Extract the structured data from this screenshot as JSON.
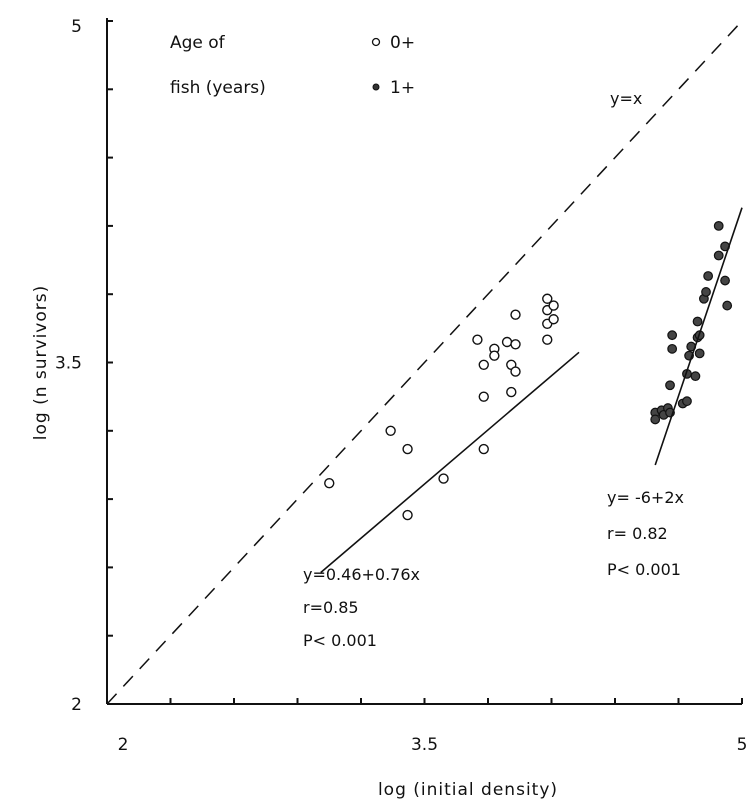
{
  "chart_data": {
    "type": "scatter",
    "xlabel": "log (initial density)",
    "ylabel": "log (n survivors)",
    "xlim": [
      2,
      5
    ],
    "ylim": [
      2,
      5
    ],
    "x_ticks": [
      "2",
      "3.5",
      "5"
    ],
    "y_ticks": [
      "2",
      "3.5",
      "5"
    ],
    "legend": {
      "title_line1": "Age of",
      "title_line2": "fish (years)",
      "entries": [
        {
          "label": "0+",
          "marker": "open-circle"
        },
        {
          "label": "1+",
          "marker": "filled-circle"
        }
      ]
    },
    "identity_label": "y=x",
    "series": [
      {
        "name": "0+",
        "marker": "open-circle",
        "points": [
          [
            3.05,
            2.97
          ],
          [
            3.34,
            3.2
          ],
          [
            3.42,
            3.12
          ],
          [
            3.42,
            2.83
          ],
          [
            3.59,
            2.99
          ],
          [
            3.75,
            3.6
          ],
          [
            3.78,
            3.49
          ],
          [
            3.78,
            3.35
          ],
          [
            3.78,
            3.12
          ],
          [
            3.83,
            3.56
          ],
          [
            3.83,
            3.53
          ],
          [
            3.89,
            3.59
          ],
          [
            3.91,
            3.49
          ],
          [
            3.91,
            3.37
          ],
          [
            3.93,
            3.46
          ],
          [
            3.93,
            3.58
          ],
          [
            3.93,
            3.71
          ],
          [
            4.08,
            3.78
          ],
          [
            4.08,
            3.73
          ],
          [
            4.08,
            3.67
          ],
          [
            4.08,
            3.6
          ],
          [
            4.11,
            3.75
          ],
          [
            4.11,
            3.69
          ]
        ],
        "fit": {
          "x_range": [
            3.01,
            4.23
          ],
          "equation": "y=0.46+0.76x",
          "r": "r=0.85",
          "p": "P< 0.001"
        }
      },
      {
        "name": "1+",
        "marker": "filled-circle",
        "points": [
          [
            4.59,
            3.28
          ],
          [
            4.59,
            3.25
          ],
          [
            4.62,
            3.29
          ],
          [
            4.63,
            3.27
          ],
          [
            4.65,
            3.3
          ],
          [
            4.66,
            3.28
          ],
          [
            4.66,
            3.4
          ],
          [
            4.67,
            3.62
          ],
          [
            4.67,
            3.56
          ],
          [
            4.72,
            3.32
          ],
          [
            4.74,
            3.33
          ],
          [
            4.74,
            3.45
          ],
          [
            4.75,
            3.53
          ],
          [
            4.76,
            3.57
          ],
          [
            4.78,
            3.44
          ],
          [
            4.79,
            3.61
          ],
          [
            4.79,
            3.68
          ],
          [
            4.8,
            3.54
          ],
          [
            4.8,
            3.62
          ],
          [
            4.82,
            3.78
          ],
          [
            4.83,
            3.81
          ],
          [
            4.84,
            3.88
          ],
          [
            4.89,
            4.1
          ],
          [
            4.89,
            3.97
          ],
          [
            4.92,
            3.86
          ],
          [
            4.92,
            4.01
          ],
          [
            4.93,
            3.75
          ]
        ],
        "fit": {
          "x_range": [
            4.59,
            5.0
          ],
          "equation": "y= -6+2x",
          "r": "r= 0.82",
          "p": "P< 0.001"
        }
      }
    ]
  }
}
